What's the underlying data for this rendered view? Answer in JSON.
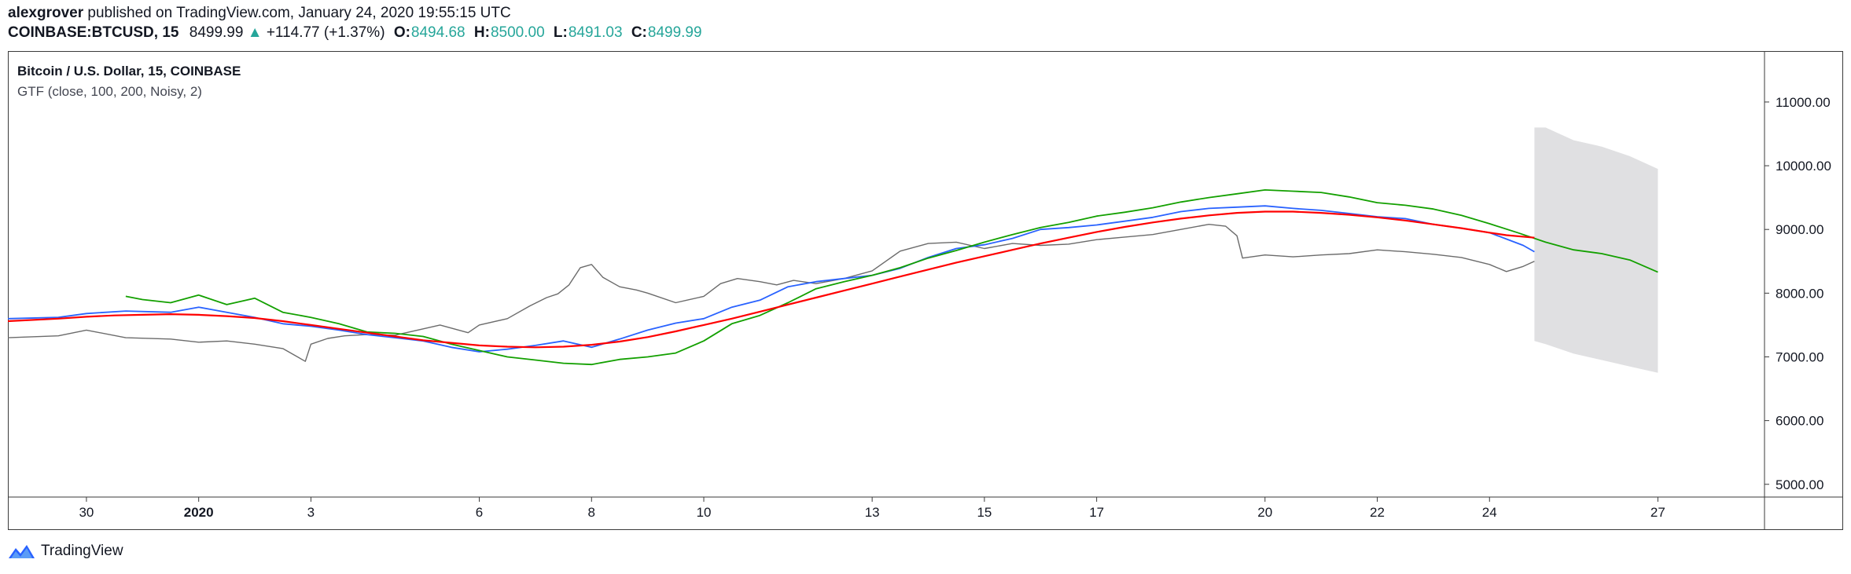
{
  "header": {
    "author": "alexgrover",
    "published_text": "published on TradingView.com, January 24, 2020 19:55:15 UTC"
  },
  "quote": {
    "symbol": "COINBASE:BTCUSD, 15",
    "price": "8499.99",
    "change_arrow": "▲",
    "change": "+114.77 (+1.37%)",
    "o_label": "O:",
    "o_value": "8494.68",
    "h_label": "H:",
    "h_value": "8500.00",
    "l_label": "L:",
    "l_value": "8491.03",
    "c_label": "C:",
    "c_value": "8499.99"
  },
  "legend": {
    "title": "Bitcoin / U.S. Dollar, 15, COINBASE",
    "indicator": "GTF (close, 100, 200, Noisy, 2)"
  },
  "footer": {
    "brand": "TradingView"
  },
  "colors": {
    "price": "#6b6b6b",
    "blue": "#2962ff",
    "green": "#13a000",
    "red": "#ff0000",
    "band": "#e0e0e2",
    "positive": "#26a69a"
  },
  "chart_data": {
    "type": "line",
    "x_unit": "days since Dec 29, 2019",
    "xlim": [
      -0.4,
      30.9
    ],
    "ylim": [
      4800,
      11800
    ],
    "x_ticks": [
      {
        "x": 1,
        "label": "30"
      },
      {
        "x": 3,
        "label": "2020"
      },
      {
        "x": 5,
        "label": "3"
      },
      {
        "x": 8,
        "label": "6"
      },
      {
        "x": 10,
        "label": "8"
      },
      {
        "x": 12,
        "label": "10"
      },
      {
        "x": 15,
        "label": "13"
      },
      {
        "x": 17,
        "label": "15"
      },
      {
        "x": 19,
        "label": "17"
      },
      {
        "x": 22,
        "label": "20"
      },
      {
        "x": 24,
        "label": "22"
      },
      {
        "x": 26,
        "label": "24"
      },
      {
        "x": 29,
        "label": "27"
      }
    ],
    "y_ticks": [
      {
        "y": 11000,
        "label": "11000.00"
      },
      {
        "y": 10000,
        "label": "10000.00"
      },
      {
        "y": 9000,
        "label": "9000.00"
      },
      {
        "y": 8000,
        "label": "8000.00"
      },
      {
        "y": 7000,
        "label": "7000.00"
      },
      {
        "y": 6000,
        "label": "6000.00"
      },
      {
        "y": 5000,
        "label": "5000.00"
      }
    ],
    "series": [
      {
        "key": "price",
        "x": [
          -0.4,
          0.5,
          1,
          1.7,
          2.5,
          3,
          3.5,
          4,
          4.5,
          4.9,
          5,
          5.3,
          5.6,
          6,
          6.5,
          7,
          7.3,
          7.8,
          8,
          8.5,
          8.9,
          9.2,
          9.4,
          9.6,
          9.8,
          10,
          10.2,
          10.5,
          10.8,
          11,
          11.5,
          12,
          12.3,
          12.6,
          13,
          13.3,
          13.6,
          14,
          14.5,
          15,
          15.5,
          16,
          16.5,
          17,
          17.5,
          18,
          18.5,
          19,
          19.5,
          20,
          20.5,
          21,
          21.3,
          21.5,
          21.6,
          22,
          22.5,
          23,
          23.5,
          24,
          24.5,
          25,
          25.5,
          26,
          26.3,
          26.6,
          26.8
        ],
        "y": [
          7300,
          7330,
          7420,
          7300,
          7280,
          7230,
          7250,
          7200,
          7130,
          6930,
          7200,
          7290,
          7330,
          7350,
          7340,
          7440,
          7500,
          7380,
          7500,
          7600,
          7800,
          7930,
          7990,
          8130,
          8400,
          8450,
          8250,
          8100,
          8050,
          8000,
          7850,
          7950,
          8150,
          8230,
          8180,
          8130,
          8200,
          8150,
          8230,
          8350,
          8660,
          8780,
          8800,
          8700,
          8780,
          8750,
          8770,
          8840,
          8880,
          8920,
          9000,
          9080,
          9050,
          8900,
          8550,
          8600,
          8570,
          8600,
          8620,
          8680,
          8650,
          8610,
          8560,
          8450,
          8340,
          8420,
          8500
        ]
      },
      {
        "key": "blue",
        "x": [
          -0.4,
          0.5,
          1,
          1.7,
          2.5,
          3,
          3.5,
          4,
          4.5,
          5,
          5.5,
          6,
          6.5,
          7,
          7.5,
          8,
          8.5,
          9,
          9.5,
          10,
          10.5,
          11,
          11.5,
          12,
          12.5,
          13,
          13.5,
          14,
          14.5,
          15,
          15.5,
          16,
          16.5,
          17,
          17.5,
          18,
          18.5,
          19,
          19.5,
          20,
          20.5,
          21,
          21.5,
          22,
          22.5,
          23,
          23.5,
          24,
          24.5,
          25,
          25.5,
          26,
          26.3,
          26.6,
          26.8
        ],
        "y": [
          7600,
          7620,
          7680,
          7720,
          7700,
          7780,
          7700,
          7620,
          7520,
          7480,
          7420,
          7350,
          7300,
          7250,
          7150,
          7080,
          7120,
          7180,
          7250,
          7150,
          7280,
          7420,
          7530,
          7600,
          7780,
          7890,
          8100,
          8180,
          8230,
          8280,
          8390,
          8560,
          8700,
          8760,
          8860,
          9000,
          9030,
          9070,
          9130,
          9190,
          9280,
          9330,
          9350,
          9370,
          9330,
          9300,
          9250,
          9200,
          9170,
          9080,
          9020,
          8950,
          8850,
          8750,
          8650
        ]
      },
      {
        "key": "green",
        "x": [
          1.7,
          2,
          2.5,
          3,
          3.5,
          4,
          4.5,
          5,
          5.5,
          6,
          6.5,
          7,
          7.5,
          8,
          8.5,
          9,
          9.5,
          10,
          10.5,
          11,
          11.5,
          12,
          12.5,
          13,
          13.5,
          14,
          14.5,
          15,
          15.5,
          16,
          16.5,
          17,
          17.5,
          18,
          18.5,
          19,
          19.5,
          20,
          20.5,
          21,
          21.5,
          22,
          22.5,
          23,
          23.5,
          24,
          24.5,
          25,
          25.5,
          26,
          26.5,
          27,
          27.5,
          28,
          28.5,
          29
        ],
        "y": [
          7950,
          7900,
          7850,
          7970,
          7820,
          7920,
          7700,
          7620,
          7520,
          7390,
          7370,
          7320,
          7200,
          7100,
          7000,
          6950,
          6900,
          6880,
          6960,
          7000,
          7060,
          7250,
          7520,
          7650,
          7850,
          8070,
          8180,
          8280,
          8400,
          8550,
          8670,
          8800,
          8920,
          9030,
          9110,
          9210,
          9270,
          9340,
          9430,
          9500,
          9560,
          9620,
          9600,
          9580,
          9510,
          9420,
          9380,
          9320,
          9220,
          9090,
          8950,
          8800,
          8680,
          8620,
          8520,
          8330
        ]
      },
      {
        "key": "red",
        "x": [
          -0.4,
          0.5,
          1,
          1.5,
          2,
          2.5,
          3,
          3.5,
          4,
          4.5,
          5,
          5.5,
          6,
          6.5,
          7,
          7.5,
          8,
          8.5,
          9,
          9.5,
          10,
          10.5,
          11,
          11.5,
          12,
          12.5,
          13,
          13.5,
          14,
          14.5,
          15,
          15.5,
          16,
          16.5,
          17,
          17.5,
          18,
          18.5,
          19,
          19.5,
          20,
          20.5,
          21,
          21.5,
          22,
          22.5,
          23,
          23.5,
          24,
          24.5,
          25,
          25.5,
          26,
          26.3,
          26.8
        ],
        "y": [
          7560,
          7600,
          7630,
          7650,
          7660,
          7670,
          7660,
          7640,
          7610,
          7560,
          7500,
          7440,
          7380,
          7320,
          7260,
          7220,
          7180,
          7160,
          7150,
          7160,
          7190,
          7240,
          7310,
          7400,
          7500,
          7600,
          7710,
          7820,
          7930,
          8040,
          8150,
          8260,
          8370,
          8480,
          8580,
          8680,
          8780,
          8870,
          8960,
          9040,
          9110,
          9170,
          9220,
          9260,
          9280,
          9280,
          9260,
          9230,
          9190,
          9140,
          9080,
          9020,
          8950,
          8910,
          8870
        ]
      }
    ],
    "band": {
      "x": [
        26.8,
        27,
        27.5,
        28,
        28.5,
        29
      ],
      "upper": [
        10600,
        10600,
        10400,
        10300,
        10150,
        9950
      ],
      "lower": [
        7250,
        7200,
        7050,
        6950,
        6850,
        6750
      ]
    }
  }
}
